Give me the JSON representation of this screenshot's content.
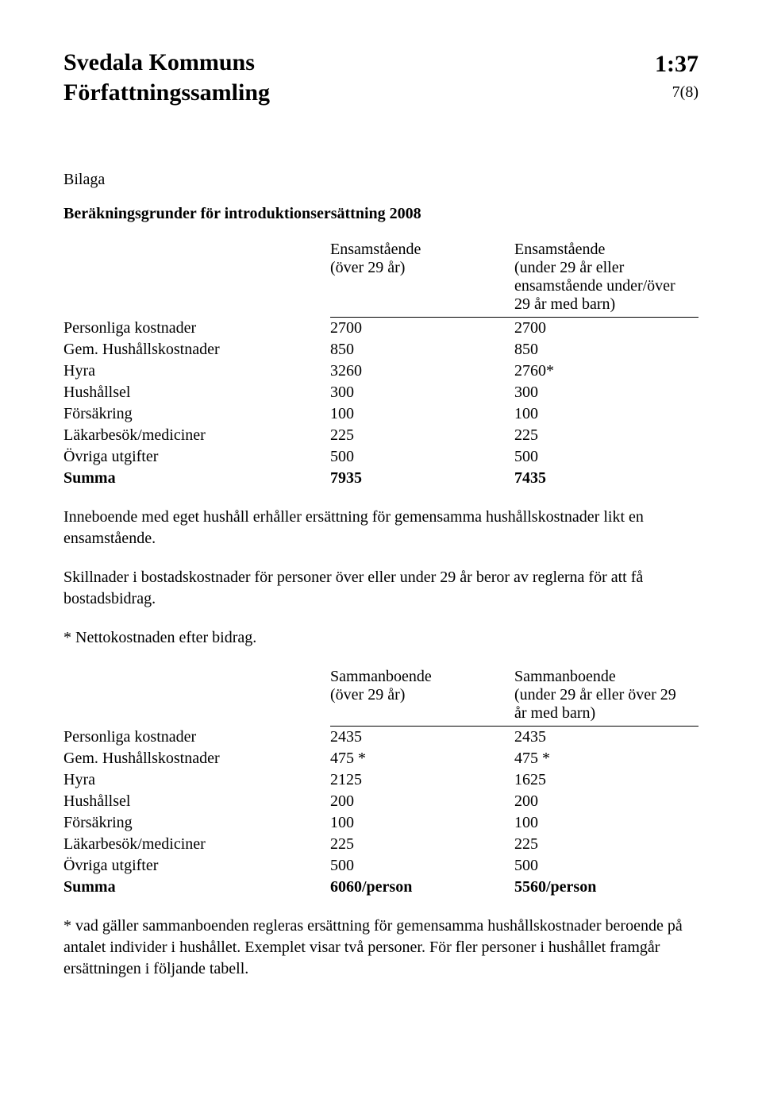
{
  "header": {
    "org_line1": "Svedala Kommuns",
    "org_line2": "Författningssamling",
    "doc_number": "1:37",
    "page_indicator": "7(8)"
  },
  "section": {
    "label": "Bilaga",
    "title": "Beräkningsgrunder för introduktionsersättning 2008"
  },
  "table1": {
    "col_a_header": "Ensamstående\n(över 29 år)",
    "col_b_header": "Ensamstående\n(under 29 år eller\nensamstående under/över\n29 år med barn)",
    "rows": [
      {
        "label": "Personliga kostnader",
        "a": "2700",
        "b": "2700"
      },
      {
        "label": "Gem. Hushållskostnader",
        "a": "850",
        "b": "850"
      },
      {
        "label": "Hyra",
        "a": "3260",
        "b": "2760*"
      },
      {
        "label": "Hushållsel",
        "a": "300",
        "b": "300"
      },
      {
        "label": "Försäkring",
        "a": "100",
        "b": "100"
      },
      {
        "label": "Läkarbesök/mediciner",
        "a": "225",
        "b": "225"
      },
      {
        "label": "Övriga utgifter",
        "a": "500",
        "b": "500"
      }
    ],
    "sum_label": "Summa",
    "sum_a": "7935",
    "sum_b": "7435"
  },
  "paragraphs": {
    "p1": "Inneboende med eget hushåll erhåller ersättning för gemensamma hushållskostnader likt en ensamstående.",
    "p2": "Skillnader i bostadskostnader för personer över eller under 29 år beror av reglerna för att få bostadsbidrag.",
    "p3": "* Nettokostnaden efter bidrag."
  },
  "table2": {
    "col_a_header": "Sammanboende\n(över 29 år)",
    "col_b_header": "Sammanboende\n(under 29 år eller över 29\når med barn)",
    "rows": [
      {
        "label": "Personliga kostnader",
        "a": "2435",
        "b": "2435"
      },
      {
        "label": "Gem. Hushållskostnader",
        "a": "475 *",
        "b": "475 *"
      },
      {
        "label": "Hyra",
        "a": "2125",
        "b": "1625"
      },
      {
        "label": "Hushållsel",
        "a": "200",
        "b": "200"
      },
      {
        "label": "Försäkring",
        "a": "100",
        "b": "100"
      },
      {
        "label": "Läkarbesök/mediciner",
        "a": "225",
        "b": "225"
      },
      {
        "label": "Övriga utgifter",
        "a": "500",
        "b": "500"
      }
    ],
    "sum_label": "Summa",
    "sum_a": "6060/person",
    "sum_b": "5560/person"
  },
  "footnote": "* vad gäller sammanboenden regleras ersättning för gemensamma hushållskostnader beroende på antalet individer i hushållet. Exemplet visar två personer. För fler personer i hushållet framgår ersättningen i följande tabell."
}
